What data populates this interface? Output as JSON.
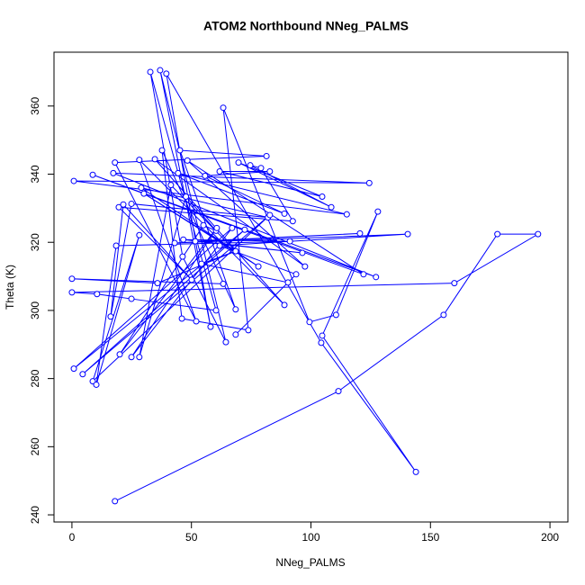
{
  "chart_data": {
    "type": "line",
    "title": "ATOM2 Northbound NNeg_PALMS",
    "x_label": "NNeg_PALMS",
    "y_label": "Theta (K)",
    "xlim": [
      -7.5,
      207.5
    ],
    "ylim": [
      237.9,
      375.8
    ],
    "xticks": [
      0,
      50,
      100,
      150,
      200
    ],
    "yticks": [
      240,
      260,
      280,
      300,
      320,
      340,
      360
    ],
    "markers": true,
    "grid": false,
    "series": [
      {
        "name": "NNeg_PALMS",
        "color": "#0000ff",
        "x": [
          18,
          111.5,
          155.5,
          178,
          195,
          160,
          0,
          10.5,
          24.9,
          60.3,
          32.8,
          46.3,
          64.4,
          36.9,
          58,
          39.5,
          104.3,
          143.9,
          104.7,
          128,
          110.5,
          99.4,
          63.3,
          73.8,
          46,
          37.7,
          68.5,
          45.2,
          81.4,
          18,
          52,
          28.2,
          88.9,
          34.7,
          97.5,
          48.3,
          122,
          8.7,
          127.2,
          17.3,
          124.4,
          0.8,
          115,
          44.4,
          88.9,
          55.7,
          82.8,
          61.8,
          104.7,
          69.7,
          108.5,
          74.6,
          79.1,
          92.4,
          19.6,
          50.1,
          21.5,
          16.2,
          24.9,
          82,
          29,
          78,
          30.1,
          68.5,
          41.4,
          28.2,
          47.7,
          60.3,
          55,
          20,
          60.6,
          24.9,
          67,
          0.8,
          72.3,
          4.5,
          82.8,
          8.7,
          28.2,
          10.2,
          18.5,
          91.2,
          46.6,
          96.4,
          51.6,
          120.5,
          43,
          140.5,
          61.8,
          93.8,
          68.5,
          90.4,
          54.2,
          68.5,
          35.8,
          0,
          63.3
        ],
        "y": [
          244,
          276.3,
          298.7,
          322.4,
          322.4,
          308,
          305.3,
          304.8,
          303.4,
          300,
          370,
          315.8,
          290.7,
          370.5,
          295.2,
          369.5,
          290.5,
          252.6,
          292.6,
          329,
          298.7,
          296.6,
          359.5,
          294.2,
          297.6,
          347,
          300.3,
          347,
          345.3,
          343.4,
          296.8,
          344.2,
          301.6,
          344.4,
          312.9,
          344,
          310.6,
          339.8,
          309.8,
          340.3,
          337.4,
          338,
          328.2,
          340.3,
          328.4,
          339.5,
          340.8,
          340.8,
          333.4,
          343.4,
          330.3,
          342.6,
          341.8,
          326.2,
          330.3,
          309,
          331.1,
          298.2,
          331.3,
          327.3,
          336,
          312.9,
          334.3,
          317.4,
          336.8,
          286.3,
          333.4,
          323.4,
          325,
          287.1,
          324.2,
          286.3,
          324.2,
          282.9,
          323.7,
          281.3,
          328,
          279.2,
          322.1,
          278.2,
          319,
          320.3,
          320.8,
          316.9,
          320.3,
          322.6,
          319.8,
          322.4,
          319,
          310.6,
          292.9,
          308.2,
          313.7,
          317.4,
          308,
          309.3,
          307.8
        ]
      }
    ]
  }
}
